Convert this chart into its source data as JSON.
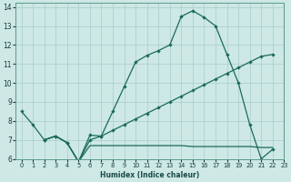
{
  "xlabel": "Humidex (Indice chaleur)",
  "bg_color": "#cde8e5",
  "grid_color": "#a8ccca",
  "line_color": "#1a6b5a",
  "xlim": [
    -0.5,
    23
  ],
  "ylim": [
    6,
    14.2
  ],
  "yticks": [
    6,
    7,
    8,
    9,
    10,
    11,
    12,
    13,
    14
  ],
  "xticks": [
    0,
    1,
    2,
    3,
    4,
    5,
    6,
    7,
    8,
    9,
    10,
    11,
    12,
    13,
    14,
    15,
    16,
    17,
    18,
    19,
    20,
    21,
    22,
    23
  ],
  "main_x": [
    0,
    1,
    2,
    3,
    4,
    5,
    6,
    7,
    8,
    9,
    10,
    11,
    12,
    13,
    14,
    15,
    16,
    17,
    18,
    19,
    20,
    21,
    22
  ],
  "main_y": [
    8.5,
    7.8,
    7.0,
    7.2,
    6.85,
    5.85,
    7.25,
    7.2,
    8.5,
    9.8,
    11.1,
    11.45,
    11.7,
    12.0,
    13.5,
    13.8,
    13.45,
    13.0,
    11.5,
    10.0,
    7.8,
    6.0,
    6.5
  ],
  "diag_x": [
    2,
    3,
    4,
    5,
    6,
    7,
    8,
    9,
    10,
    11,
    12,
    13,
    14,
    15,
    16,
    17,
    18,
    19,
    20,
    21,
    22
  ],
  "diag_y": [
    7.0,
    7.2,
    6.85,
    5.85,
    7.0,
    7.2,
    7.5,
    7.8,
    8.1,
    8.4,
    8.7,
    9.0,
    9.3,
    9.6,
    9.9,
    10.2,
    10.5,
    10.8,
    11.1,
    11.4,
    11.5
  ],
  "flat_x": [
    2,
    3,
    4,
    5,
    6,
    7,
    8,
    9,
    10,
    11,
    12,
    13,
    14,
    15,
    16,
    17,
    18,
    19,
    20,
    21,
    22
  ],
  "flat_y": [
    7.0,
    7.2,
    6.85,
    5.85,
    6.7,
    6.7,
    6.7,
    6.7,
    6.7,
    6.7,
    6.7,
    6.7,
    6.7,
    6.65,
    6.65,
    6.65,
    6.65,
    6.65,
    6.65,
    6.6,
    6.6
  ]
}
